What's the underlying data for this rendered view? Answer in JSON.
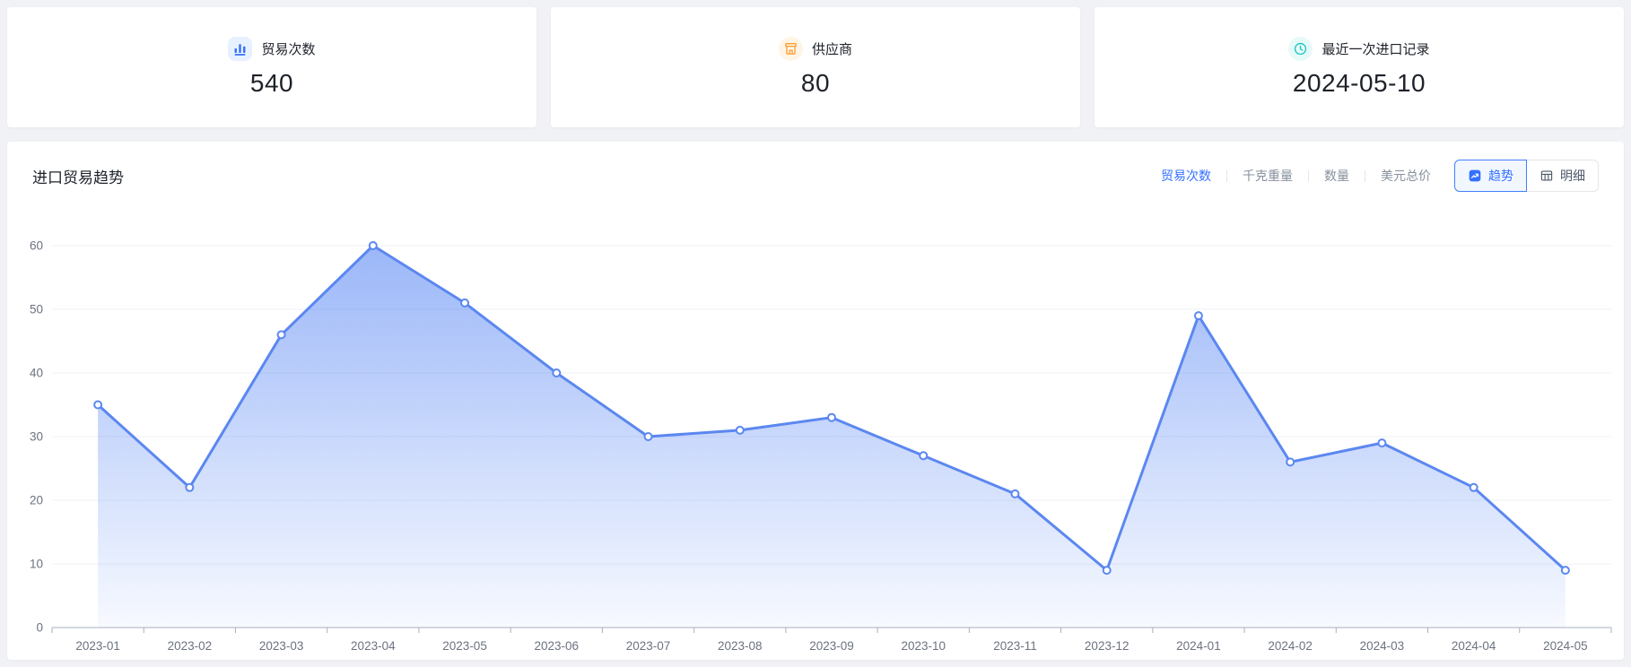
{
  "stats": {
    "cards": [
      {
        "label": "贸易次数",
        "value": "540",
        "icon": "bar-chart-icon",
        "accent": "#3370FF",
        "accent_bg": "#E8F1FF"
      },
      {
        "label": "供应商",
        "value": "80",
        "icon": "shop-icon",
        "accent": "#FF9A2E",
        "accent_bg": "#FFF5E6"
      },
      {
        "label": "最近一次进口记录",
        "value": "2024-05-10",
        "icon": "clock-icon",
        "accent": "#17C2C2",
        "accent_bg": "#E6FAF8"
      }
    ]
  },
  "chart_section": {
    "title": "进口贸易趋势",
    "metric_tabs": [
      {
        "label": "贸易次数",
        "active": true
      },
      {
        "label": "千克重量",
        "active": false
      },
      {
        "label": "数量",
        "active": false
      },
      {
        "label": "美元总价",
        "active": false
      }
    ],
    "view_buttons": [
      {
        "label": "趋势",
        "icon": "trend-icon",
        "active": true
      },
      {
        "label": "明细",
        "icon": "table-icon",
        "active": false
      }
    ]
  },
  "chart_data": {
    "type": "area",
    "title": "进口贸易趋势",
    "x": [
      "2023-01",
      "2023-02",
      "2023-03",
      "2023-04",
      "2023-05",
      "2023-06",
      "2023-07",
      "2023-08",
      "2023-09",
      "2023-10",
      "2023-11",
      "2023-12",
      "2024-01",
      "2024-02",
      "2024-03",
      "2024-04",
      "2024-05"
    ],
    "series": [
      {
        "name": "贸易次数",
        "values": [
          35,
          22,
          46,
          60,
          51,
          40,
          30,
          31,
          33,
          27,
          21,
          9,
          49,
          26,
          29,
          22,
          9
        ]
      }
    ],
    "ylim": [
      0,
      60
    ],
    "yticks": [
      0,
      10,
      20,
      30,
      40,
      50,
      60
    ],
    "grid": true,
    "legend": false,
    "line_color": "#5B87F0",
    "area_color": "#5E8BF5",
    "grid_color": "#EDF0F5",
    "axis_color": "#A9AFBC",
    "label_color": "#6B7280"
  }
}
